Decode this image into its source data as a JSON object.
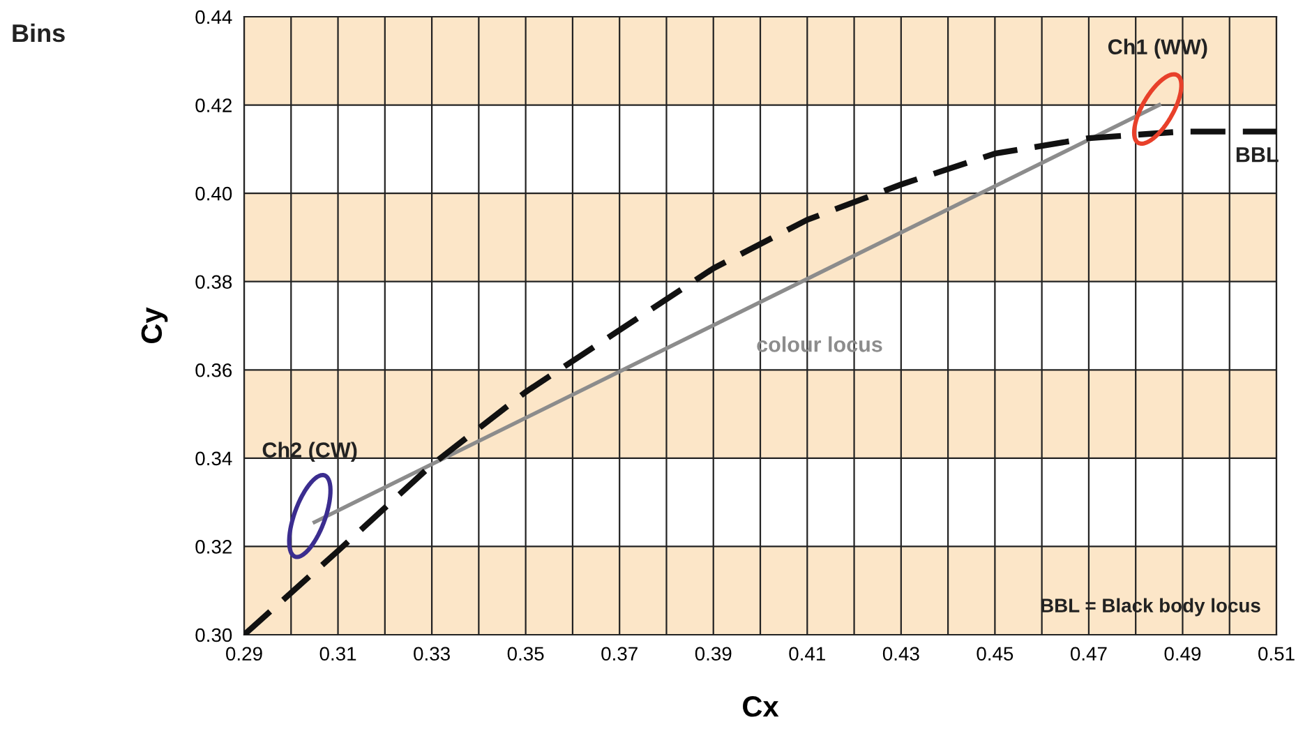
{
  "chart_data": {
    "type": "line",
    "title": "Bins",
    "xlabel": "Cx",
    "ylabel": "Cy",
    "xlim": [
      0.29,
      0.51
    ],
    "ylim": [
      0.3,
      0.44
    ],
    "xticks": [
      0.29,
      {
        "value": 0.3,
        "label": null
      },
      0.31,
      {
        "value": 0.32,
        "label": null
      },
      0.33,
      {
        "value": 0.34,
        "label": null
      },
      0.35,
      {
        "value": 0.36,
        "label": null
      },
      0.37,
      {
        "value": 0.38,
        "label": null
      },
      0.39,
      {
        "value": 0.4,
        "label": null
      },
      0.41,
      {
        "value": 0.42,
        "label": null
      },
      0.43,
      {
        "value": 0.44,
        "label": null
      },
      0.45,
      {
        "value": 0.46,
        "label": null
      },
      0.47,
      {
        "value": 0.48,
        "label": null
      },
      0.49,
      {
        "value": 0.5,
        "label": null
      },
      0.51
    ],
    "yticks": [
      {
        "value": 0.3,
        "label": "0.30"
      },
      {
        "value": 0.32,
        "label": "0.32"
      },
      {
        "value": 0.34,
        "label": "0.34"
      },
      {
        "value": 0.36,
        "label": "0.36"
      },
      {
        "value": 0.38,
        "label": "0.38"
      },
      {
        "value": 0.4,
        "label": "0.40"
      },
      {
        "value": 0.42,
        "label": "0.42"
      },
      {
        "value": 0.44,
        "label": "0.44"
      }
    ],
    "grid": true,
    "bands": [
      {
        "axis": "y",
        "from": 0.3,
        "to": 0.32,
        "color": "#fce6c8"
      },
      {
        "axis": "y",
        "from": 0.34,
        "to": 0.36,
        "color": "#fce6c8"
      },
      {
        "axis": "y",
        "from": 0.38,
        "to": 0.4,
        "color": "#fce6c8"
      },
      {
        "axis": "y",
        "from": 0.42,
        "to": 0.44,
        "color": "#fce6c8"
      }
    ],
    "series": [
      {
        "name": "colour locus",
        "color": "#8c8c8c",
        "line_style": "solid",
        "x": [
          0.305,
          0.485
        ],
        "values": [
          0.3255,
          0.42
        ]
      },
      {
        "name": "BBL",
        "color": "#111111",
        "line_style": "dashed",
        "x": [
          0.29,
          0.31,
          0.33,
          0.35,
          0.37,
          0.39,
          0.41,
          0.43,
          0.45,
          0.47,
          0.49,
          0.51
        ],
        "values": [
          0.3,
          0.319,
          0.3385,
          0.355,
          0.369,
          0.383,
          0.394,
          0.402,
          0.409,
          0.4125,
          0.414,
          0.414
        ]
      }
    ],
    "annotations": [
      {
        "text": "Ch1 (WW)",
        "x": 0.4847,
        "y": 0.4191
      },
      {
        "text": "Ch2 (CW)",
        "x": 0.304,
        "y": 0.3269
      },
      "BBL = Black body locus"
    ]
  }
}
